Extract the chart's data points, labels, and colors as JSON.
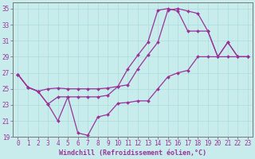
{
  "xlabel": "Windchill (Refroidissement éolien,°C)",
  "background_color": "#c8ecec",
  "line_color": "#993399",
  "xlim_min": -0.5,
  "xlim_max": 23.5,
  "ylim_min": 19,
  "ylim_max": 35.8,
  "yticks": [
    19,
    21,
    23,
    25,
    27,
    29,
    31,
    33,
    35
  ],
  "xticks": [
    0,
    1,
    2,
    3,
    4,
    5,
    6,
    7,
    8,
    9,
    10,
    11,
    12,
    13,
    14,
    15,
    16,
    17,
    18,
    19,
    20,
    21,
    22,
    23
  ],
  "grid_color": "#aadddd",
  "marker": "D",
  "markersize": 2.0,
  "linewidth": 0.9,
  "line1_x": [
    0,
    1,
    2,
    3,
    4,
    5,
    6,
    7,
    8,
    9,
    10,
    11,
    12,
    13,
    14,
    15,
    16,
    17,
    18,
    19,
    20,
    21,
    22,
    23
  ],
  "line1_y": [
    26.8,
    25.2,
    24.7,
    25.0,
    25.1,
    25.0,
    25.0,
    25.0,
    25.0,
    25.1,
    25.3,
    25.5,
    27.5,
    29.2,
    30.8,
    34.8,
    35.0,
    34.7,
    34.4,
    32.2,
    29.0,
    30.8,
    29.0,
    29.0
  ],
  "line2_x": [
    0,
    1,
    2,
    3,
    4,
    5,
    6,
    7,
    8,
    9,
    10,
    11,
    12,
    13,
    14,
    15,
    16,
    17,
    18,
    19,
    20,
    21,
    22,
    23
  ],
  "line2_y": [
    26.8,
    25.2,
    24.7,
    23.1,
    21.0,
    24.0,
    19.5,
    19.2,
    21.5,
    21.8,
    23.2,
    23.3,
    23.5,
    23.5,
    25.0,
    26.5,
    27.0,
    27.3,
    29.0,
    29.0,
    29.0,
    29.0,
    29.0,
    29.0
  ],
  "line3_x": [
    0,
    1,
    2,
    3,
    4,
    5,
    6,
    7,
    8,
    9,
    10,
    11,
    12,
    13,
    14,
    15,
    16,
    17,
    18,
    19,
    20,
    21,
    22,
    23
  ],
  "line3_y": [
    26.8,
    25.2,
    24.7,
    23.1,
    24.0,
    24.0,
    24.0,
    24.0,
    24.0,
    24.2,
    25.3,
    27.5,
    29.2,
    30.8,
    34.8,
    35.0,
    34.7,
    32.2,
    32.2,
    32.2,
    29.0,
    30.8,
    29.0,
    29.0
  ],
  "tick_fontsize": 5.5,
  "xlabel_fontsize": 6.0
}
